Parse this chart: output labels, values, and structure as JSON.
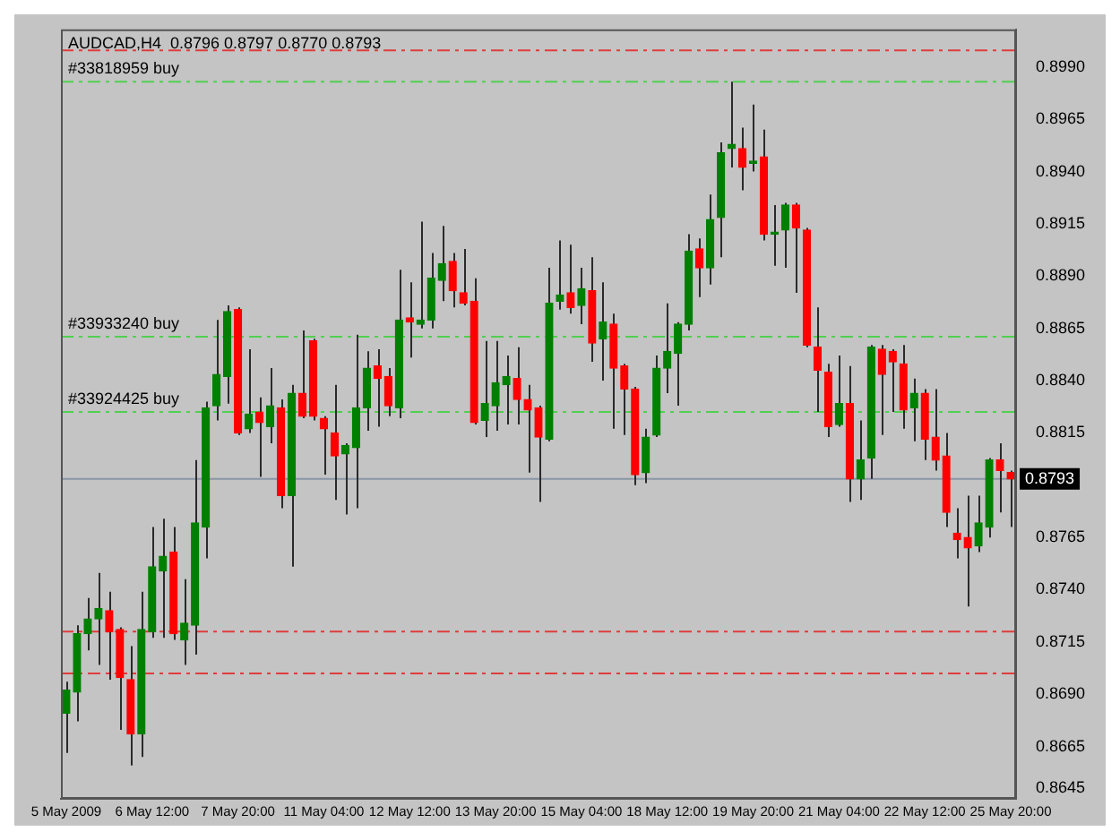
{
  "chart_data": {
    "type": "candlestick",
    "title": "AUDCAD,H4  0.8796 0.8797 0.8770 0.8793",
    "categories": [
      "5 May 2009",
      null,
      null,
      null,
      null,
      null,
      null,
      null,
      "6 May 12:00",
      null,
      null,
      null,
      null,
      null,
      null,
      null,
      "7 May 20:00",
      null,
      null,
      null,
      null,
      null,
      null,
      null,
      "11 May 04:00",
      null,
      null,
      null,
      null,
      null,
      null,
      null,
      "12 May 12:00",
      null,
      null,
      null,
      null,
      null,
      null,
      null,
      "13 May 20:00",
      null,
      null,
      null,
      null,
      null,
      null,
      null,
      "15 May 04:00",
      null,
      null,
      null,
      null,
      null,
      null,
      null,
      "18 May 12:00",
      null,
      null,
      null,
      null,
      null,
      null,
      null,
      "19 May 20:00",
      null,
      null,
      null,
      null,
      null,
      null,
      null,
      "21 May 04:00",
      null,
      null,
      null,
      null,
      null,
      null,
      null,
      "22 May 12:00",
      null,
      null,
      null,
      null,
      null,
      null,
      null,
      "25 May 20:00"
    ],
    "ohlc": [
      [
        0.8681,
        0.8696,
        0.8662,
        0.8692
      ],
      [
        0.8691,
        0.8723,
        0.8677,
        0.8719
      ],
      [
        0.8719,
        0.8736,
        0.8711,
        0.8726
      ],
      [
        0.8726,
        0.8748,
        0.8704,
        0.8731
      ],
      [
        0.873,
        0.8739,
        0.8697,
        0.872
      ],
      [
        0.8721,
        0.8722,
        0.8673,
        0.8698
      ],
      [
        0.8697,
        0.8713,
        0.8656,
        0.8671
      ],
      [
        0.8671,
        0.8739,
        0.866,
        0.8721
      ],
      [
        0.872,
        0.877,
        0.8717,
        0.8751
      ],
      [
        0.8749,
        0.8774,
        0.8717,
        0.8756
      ],
      [
        0.8758,
        0.877,
        0.8716,
        0.8719
      ],
      [
        0.8716,
        0.8745,
        0.8704,
        0.8724
      ],
      [
        0.8723,
        0.8802,
        0.8709,
        0.8772
      ],
      [
        0.877,
        0.883,
        0.8755,
        0.8827
      ],
      [
        0.8828,
        0.8869,
        0.8821,
        0.8843
      ],
      [
        0.8842,
        0.8876,
        0.8829,
        0.8873
      ],
      [
        0.8874,
        0.8875,
        0.8814,
        0.8815
      ],
      [
        0.8817,
        0.8855,
        0.8815,
        0.8824
      ],
      [
        0.8825,
        0.8832,
        0.8794,
        0.882
      ],
      [
        0.8818,
        0.8846,
        0.881,
        0.8828
      ],
      [
        0.8827,
        0.8831,
        0.8779,
        0.8785
      ],
      [
        0.8785,
        0.8838,
        0.8751,
        0.8834
      ],
      [
        0.8834,
        0.8864,
        0.8822,
        0.8823
      ],
      [
        0.8859,
        0.886,
        0.8821,
        0.8823
      ],
      [
        0.8822,
        0.8823,
        0.8795,
        0.8817
      ],
      [
        0.8815,
        0.8838,
        0.8783,
        0.8804
      ],
      [
        0.8805,
        0.881,
        0.8776,
        0.8809
      ],
      [
        0.8808,
        0.8862,
        0.8779,
        0.8827
      ],
      [
        0.8827,
        0.8854,
        0.8816,
        0.8846
      ],
      [
        0.8847,
        0.8855,
        0.8818,
        0.8841
      ],
      [
        0.8842,
        0.8846,
        0.8823,
        0.8828
      ],
      [
        0.8827,
        0.8893,
        0.8822,
        0.8869
      ],
      [
        0.887,
        0.8887,
        0.8851,
        0.8868
      ],
      [
        0.8867,
        0.8916,
        0.8865,
        0.8869
      ],
      [
        0.8869,
        0.8901,
        0.8865,
        0.8889
      ],
      [
        0.8888,
        0.8914,
        0.8878,
        0.8896
      ],
      [
        0.8897,
        0.8901,
        0.8875,
        0.8883
      ],
      [
        0.8882,
        0.8903,
        0.8876,
        0.8877
      ],
      [
        0.8878,
        0.8889,
        0.8819,
        0.882
      ],
      [
        0.8821,
        0.8859,
        0.8813,
        0.8829
      ],
      [
        0.8828,
        0.8859,
        0.8816,
        0.8839
      ],
      [
        0.8838,
        0.8852,
        0.8819,
        0.8842
      ],
      [
        0.8841,
        0.8856,
        0.8819,
        0.8831
      ],
      [
        0.8831,
        0.8838,
        0.8796,
        0.8826
      ],
      [
        0.8827,
        0.8828,
        0.8782,
        0.8813
      ],
      [
        0.8812,
        0.8894,
        0.8811,
        0.8877
      ],
      [
        0.8878,
        0.8907,
        0.8874,
        0.8881
      ],
      [
        0.8882,
        0.8905,
        0.8872,
        0.8875
      ],
      [
        0.8876,
        0.8894,
        0.8867,
        0.8884
      ],
      [
        0.8883,
        0.8899,
        0.8849,
        0.8858
      ],
      [
        0.886,
        0.8887,
        0.884,
        0.8868
      ],
      [
        0.8867,
        0.8872,
        0.8817,
        0.8846
      ],
      [
        0.8847,
        0.8848,
        0.8814,
        0.8836
      ],
      [
        0.8836,
        0.8837,
        0.879,
        0.8795
      ],
      [
        0.8796,
        0.8817,
        0.8791,
        0.8813
      ],
      [
        0.8814,
        0.8852,
        0.8813,
        0.8846
      ],
      [
        0.8846,
        0.8877,
        0.8834,
        0.8854
      ],
      [
        0.8853,
        0.8868,
        0.8828,
        0.8867
      ],
      [
        0.8867,
        0.891,
        0.8864,
        0.8902
      ],
      [
        0.8903,
        0.8908,
        0.888,
        0.8894
      ],
      [
        0.8894,
        0.8929,
        0.8886,
        0.8917
      ],
      [
        0.8918,
        0.8954,
        0.8899,
        0.8949
      ],
      [
        0.8951,
        0.8983,
        0.8942,
        0.8953
      ],
      [
        0.8951,
        0.8961,
        0.8931,
        0.8942
      ],
      [
        0.8944,
        0.8972,
        0.894,
        0.8945
      ],
      [
        0.8947,
        0.896,
        0.8907,
        0.891
      ],
      [
        0.891,
        0.8924,
        0.8895,
        0.8911
      ],
      [
        0.8912,
        0.8925,
        0.8894,
        0.8924
      ],
      [
        0.8924,
        0.8925,
        0.8882,
        0.8913
      ],
      [
        0.8912,
        0.8913,
        0.8856,
        0.8857
      ],
      [
        0.8856,
        0.8875,
        0.8825,
        0.8845
      ],
      [
        0.8844,
        0.8848,
        0.8813,
        0.8818
      ],
      [
        0.8819,
        0.8852,
        0.8818,
        0.8829
      ],
      [
        0.8829,
        0.8847,
        0.8782,
        0.8793
      ],
      [
        0.8793,
        0.8821,
        0.8783,
        0.8802
      ],
      [
        0.8803,
        0.8857,
        0.8793,
        0.8856
      ],
      [
        0.8855,
        0.8857,
        0.8814,
        0.8843
      ],
      [
        0.8854,
        0.8855,
        0.8825,
        0.8849
      ],
      [
        0.8848,
        0.8857,
        0.8817,
        0.8826
      ],
      [
        0.8827,
        0.8841,
        0.8811,
        0.8834
      ],
      [
        0.8834,
        0.8836,
        0.8802,
        0.8812
      ],
      [
        0.8813,
        0.8836,
        0.8797,
        0.8802
      ],
      [
        0.8804,
        0.8815,
        0.877,
        0.8777
      ],
      [
        0.8767,
        0.8779,
        0.8755,
        0.8764
      ],
      [
        0.8765,
        0.8785,
        0.8732,
        0.876
      ],
      [
        0.8761,
        0.8785,
        0.8758,
        0.8772
      ],
      [
        0.877,
        0.8803,
        0.8765,
        0.8802
      ],
      [
        0.8802,
        0.881,
        0.8777,
        0.8797
      ],
      [
        0.8796,
        0.8797,
        0.877,
        0.8793
      ]
    ],
    "colors": [
      "#008000",
      "#008000",
      "#008000",
      "#008000",
      "#ff0000",
      "#ff0000",
      "#ff0000",
      "#008000",
      "#008000",
      "#008000",
      "#ff0000",
      "#008000",
      "#008000",
      "#008000",
      "#008000",
      "#008000",
      "#ff0000",
      "#008000",
      "#ff0000",
      "#008000",
      "#ff0000",
      "#008000",
      "#ff0000",
      "#ff0000",
      "#ff0000",
      "#ff0000",
      "#008000",
      "#008000",
      "#008000",
      "#ff0000",
      "#ff0000",
      "#008000",
      "#ff0000",
      "#008000",
      "#008000",
      "#008000",
      "#ff0000",
      "#ff0000",
      "#ff0000",
      "#008000",
      "#008000",
      "#008000",
      "#ff0000",
      "#ff0000",
      "#ff0000",
      "#008000",
      "#008000",
      "#ff0000",
      "#008000",
      "#ff0000",
      "#008000",
      "#ff0000",
      "#ff0000",
      "#ff0000",
      "#008000",
      "#008000",
      "#008000",
      "#008000",
      "#008000",
      "#ff0000",
      "#008000",
      "#008000",
      "#008000",
      "#ff0000",
      "#008000",
      "#ff0000",
      "#008000",
      "#008000",
      "#ff0000",
      "#ff0000",
      "#ff0000",
      "#ff0000",
      "#008000",
      "#ff0000",
      "#008000",
      "#008000",
      "#ff0000",
      "#ff0000",
      "#ff0000",
      "#008000",
      "#ff0000",
      "#ff0000",
      "#ff0000",
      "#ff0000",
      "#ff0000",
      "#008000",
      "#008000",
      "#ff0000",
      "#ff0000"
    ],
    "ylim": [
      0.864,
      0.9008
    ],
    "yticks": [
      {
        "value": 0.8645,
        "label": "0.8645"
      },
      {
        "value": 0.8665,
        "label": "0.8665"
      },
      {
        "value": 0.869,
        "label": "0.8690"
      },
      {
        "value": 0.8715,
        "label": "0.8715"
      },
      {
        "value": 0.874,
        "label": "0.8740"
      },
      {
        "value": 0.8765,
        "label": "0.8765"
      },
      {
        "value": 0.8815,
        "label": "0.8815"
      },
      {
        "value": 0.884,
        "label": "0.8840"
      },
      {
        "value": 0.8865,
        "label": "0.8865"
      },
      {
        "value": 0.889,
        "label": "0.8890"
      },
      {
        "value": 0.8915,
        "label": "0.8915"
      },
      {
        "value": 0.894,
        "label": "0.8940"
      },
      {
        "value": 0.8965,
        "label": "0.8965"
      },
      {
        "value": 0.899,
        "label": "0.8990"
      }
    ],
    "ref_lines": [
      {
        "axis": "y",
        "value": 0.8998,
        "color": "#e03c3c",
        "line_style": "dashed"
      },
      {
        "axis": "y",
        "value": 0.8983,
        "label": "#33818959 buy",
        "color": "#50d050",
        "line_style": "dashed"
      },
      {
        "axis": "y",
        "value": 0.8861,
        "label": "#33933240 buy",
        "color": "#50d050",
        "line_style": "dashed"
      },
      {
        "axis": "y",
        "value": 0.8825,
        "label": "#33924425 buy",
        "color": "#50d050",
        "line_style": "dashed"
      },
      {
        "axis": "y",
        "value": 0.872,
        "color": "#e03c3c",
        "line_style": "dashed"
      },
      {
        "axis": "y",
        "value": 0.87,
        "color": "#e03c3c",
        "line_style": "dashed"
      },
      {
        "axis": "y",
        "value": 0.8793,
        "label": "0.8793",
        "color": "#8a96a6",
        "line_style": "solid"
      }
    ],
    "grid": false,
    "legend": false
  }
}
